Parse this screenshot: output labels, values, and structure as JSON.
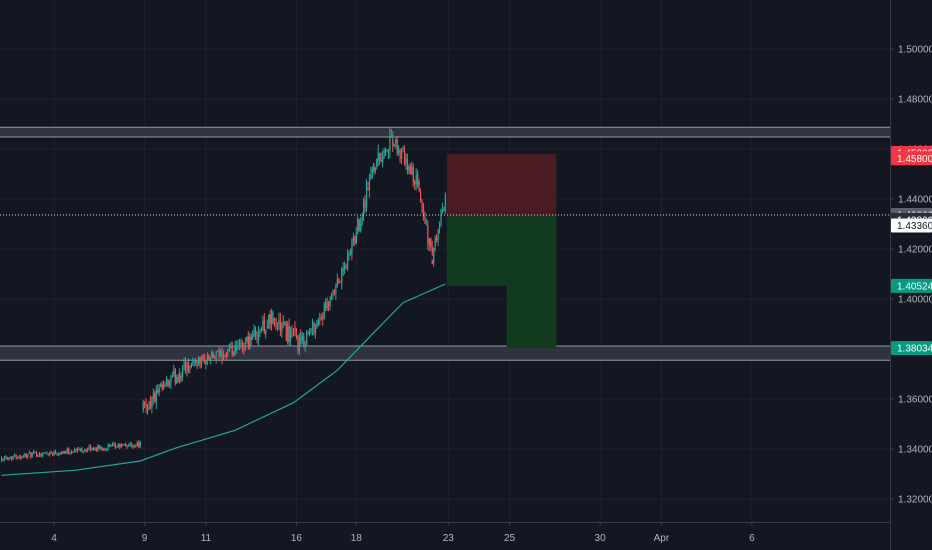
{
  "colors": {
    "background": "#131722",
    "grid": "#1e222d",
    "axis_text": "#b2b5be",
    "up": "#26a69a",
    "down": "#ef5350",
    "ma": "#26a69a",
    "zone_line": "#9598a1",
    "zone_fill": "#3a3e4a",
    "stop_fill": "#4a1b22",
    "target_fill": "#123a1f",
    "badge_red": "#f23645",
    "badge_green": "#089981",
    "badge_price": "#5d606b"
  },
  "chart_data": {
    "type": "candlestick",
    "title": "",
    "xlabel": "",
    "ylabel": "",
    "ylim": [
      1.3108,
      1.5196
    ],
    "y_ticks": [
      "1.32000",
      "1.34000",
      "1.36000",
      "1.38000",
      "1.40000",
      "1.42000",
      "1.44000",
      "1.46000",
      "1.48000",
      "1.50000"
    ],
    "x_ticks": [
      {
        "label": "4",
        "index": 36
      },
      {
        "label": "9",
        "index": 98
      },
      {
        "label": "11",
        "index": 140
      },
      {
        "label": "16",
        "index": 202
      },
      {
        "label": "18",
        "index": 243
      },
      {
        "label": "23",
        "index": 306
      },
      {
        "label": "25",
        "index": 348
      },
      {
        "label": "30",
        "index": 410
      },
      {
        "label": "Apr",
        "index": 452
      },
      {
        "label": "6",
        "index": 514
      }
    ],
    "segments": [
      {
        "from": 0,
        "to": 95,
        "start": 1.3365,
        "end": 1.342,
        "amp": 0.0015
      },
      {
        "from": 97,
        "to": 128,
        "start": 1.356,
        "end": 1.374,
        "amp": 0.0045
      },
      {
        "from": 128,
        "to": 160,
        "start": 1.374,
        "end": 1.379,
        "amp": 0.0035
      },
      {
        "from": 160,
        "to": 185,
        "start": 1.379,
        "end": 1.392,
        "amp": 0.0045
      },
      {
        "from": 185,
        "to": 205,
        "start": 1.392,
        "end": 1.382,
        "amp": 0.0055
      },
      {
        "from": 205,
        "to": 225,
        "start": 1.382,
        "end": 1.398,
        "amp": 0.0045
      },
      {
        "from": 225,
        "to": 240,
        "start": 1.398,
        "end": 1.42,
        "amp": 0.0045
      },
      {
        "from": 240,
        "to": 255,
        "start": 1.42,
        "end": 1.454,
        "amp": 0.0055
      },
      {
        "from": 255,
        "to": 268,
        "start": 1.454,
        "end": 1.463,
        "amp": 0.0055
      },
      {
        "from": 268,
        "to": 285,
        "start": 1.463,
        "end": 1.446,
        "amp": 0.0045
      },
      {
        "from": 285,
        "to": 295,
        "start": 1.446,
        "end": 1.416,
        "amp": 0.005
      },
      {
        "from": 295,
        "to": 304,
        "start": 1.416,
        "end": 1.4405,
        "amp": 0.0045
      }
    ],
    "moving_average": {
      "points": [
        {
          "index": 0,
          "value": 1.3295
        },
        {
          "index": 50,
          "value": 1.3315
        },
        {
          "index": 95,
          "value": 1.3352
        },
        {
          "index": 120,
          "value": 1.3405
        },
        {
          "index": 160,
          "value": 1.3475
        },
        {
          "index": 200,
          "value": 1.3585
        },
        {
          "index": 230,
          "value": 1.3715
        },
        {
          "index": 255,
          "value": 1.3865
        },
        {
          "index": 275,
          "value": 1.3985
        },
        {
          "index": 304,
          "value": 1.406
        }
      ]
    },
    "zones": [
      {
        "name": "resistance",
        "low": 1.4648,
        "high": 1.4687
      },
      {
        "name": "support",
        "low": 1.3755,
        "high": 1.3812
      }
    ],
    "position": {
      "entry": 1.4336,
      "stop": 1.458,
      "target_1": 1.40524,
      "target_2": 1.38034,
      "start_index": 305,
      "split_index": 346,
      "end_index": 380
    },
    "last_price": 1.4336,
    "price_badges": [
      {
        "value": "1.45800",
        "style": "red",
        "price": 1.4584
      },
      {
        "value": "1.45800",
        "style": "red",
        "price": 1.4563
      },
      {
        "value": "1.43360",
        "style": "grey",
        "price": 1.4336
      },
      {
        "value": "1.43360",
        "style": "dark",
        "price": 1.4317
      },
      {
        "value": "1.43360",
        "style": "white",
        "price": 1.4294
      },
      {
        "value": "1.40524",
        "style": "green",
        "price": 1.40524
      },
      {
        "value": "1.38034",
        "style": "green",
        "price": 1.38034
      }
    ]
  }
}
